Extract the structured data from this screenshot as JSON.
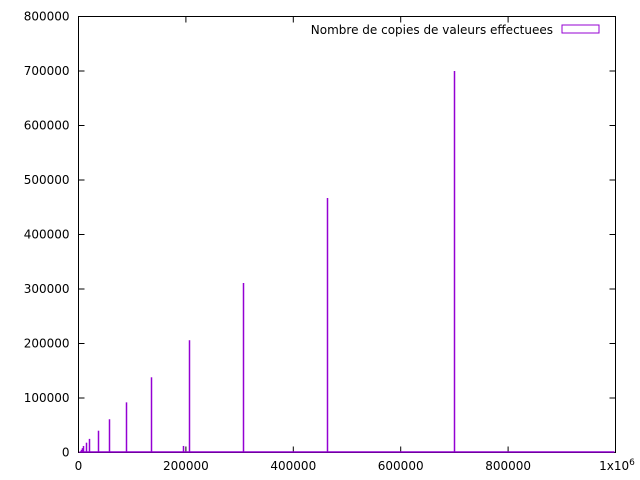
{
  "chart_data": {
    "type": "bar",
    "title": "",
    "xlabel": "",
    "ylabel": "",
    "xlim": [
      0,
      1000000
    ],
    "ylim": [
      0,
      800000
    ],
    "x_ticks": [
      "0",
      "200000",
      "400000",
      "600000",
      "800000"
    ],
    "x_tick_end_base": "1x10",
    "x_tick_end_exp": "6",
    "y_ticks": [
      "0",
      "100000",
      "200000",
      "300000",
      "400000",
      "500000",
      "600000",
      "700000",
      "800000"
    ],
    "grid": false,
    "legend": {
      "position": "top-right"
    },
    "colors": {
      "series": "#9400d3",
      "axis": "#000000"
    },
    "series": [
      {
        "name": "Nombre de copies de valeurs effectuees",
        "x": [
          1200,
          2500,
          4000,
          6000,
          9000,
          13500,
          20000,
          25000,
          37000,
          56000,
          88000,
          135000,
          195000,
          205000,
          307000,
          463000,
          700000
        ],
        "values": [
          1000,
          2000,
          5000,
          8000,
          12000,
          18000,
          25000,
          1000,
          40000,
          61000,
          92000,
          138000,
          12000,
          206000,
          311000,
          467000,
          700000
        ]
      }
    ]
  }
}
